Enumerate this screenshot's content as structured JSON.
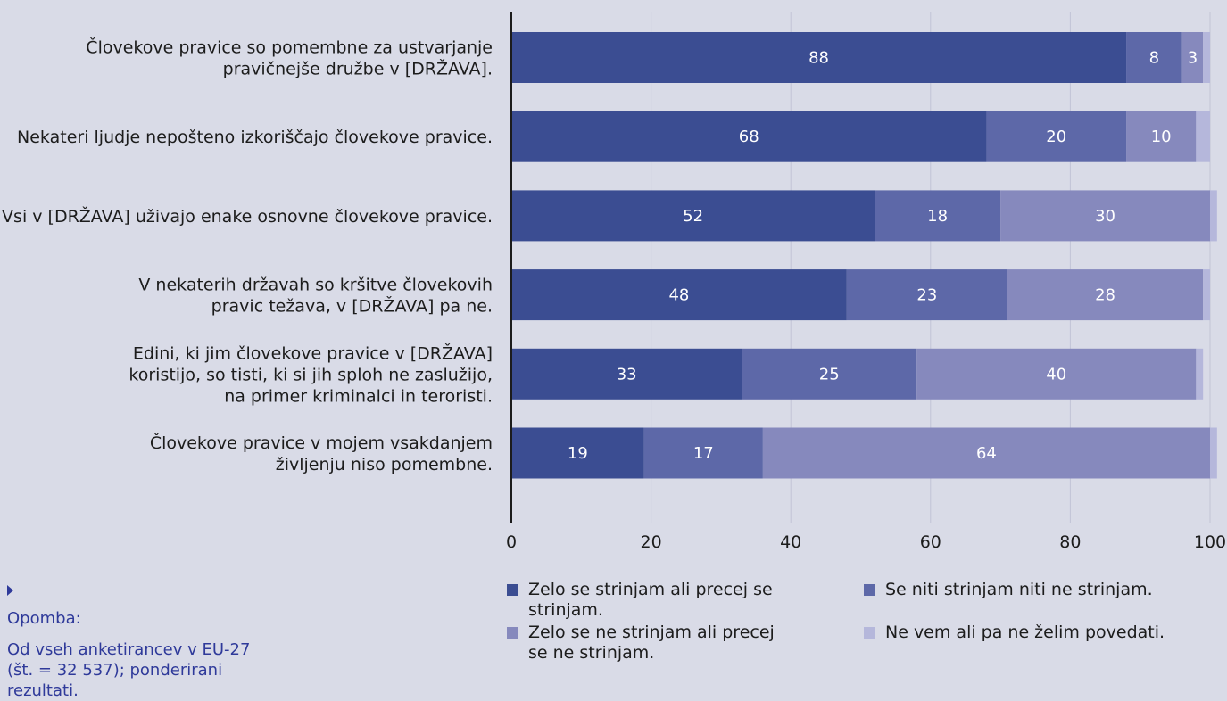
{
  "chart_data": {
    "type": "bar",
    "orientation": "horizontal",
    "stacked": true,
    "categories": [
      [
        "Človekove pravice so pomembne za ustvarjanje",
        "pravičnejše družbe v [DRŽAVA]."
      ],
      [
        "Nekateri ljudje nepošteno izkoriščajo človekove pravice."
      ],
      [
        "Vsi v [DRŽAVA] uživajo enake osnovne človekove pravice."
      ],
      [
        "V nekaterih državah so kršitve človekovih",
        "pravic težava, v [DRŽAVA] pa ne."
      ],
      [
        "Edini, ki jim človekove pravice v [DRŽAVA]",
        "koristijo, so tisti, ki si jih sploh ne zaslužijo,",
        "na primer kriminalci in teroristi."
      ],
      [
        "Človekove pravice v mojem vsakdanjem",
        "življenju niso pomembne."
      ]
    ],
    "series": [
      {
        "name": "Zelo se strinjam ali precej se strinjam.",
        "color": "#3b4d92",
        "values": [
          88,
          68,
          52,
          48,
          33,
          19
        ],
        "labels": [
          "88",
          "68",
          "52",
          "48",
          "33",
          "19"
        ]
      },
      {
        "name": "Se niti strinjam niti ne strinjam.",
        "color": "#5d68a8",
        "values": [
          8,
          20,
          18,
          23,
          25,
          17
        ],
        "labels": [
          "8",
          "20",
          "18",
          "23",
          "25",
          "17"
        ]
      },
      {
        "name": "Zelo se ne strinjam ali precej se ne strinjam.",
        "color": "#8689bd",
        "values": [
          3,
          10,
          30,
          28,
          40,
          64
        ],
        "labels": [
          "3",
          "10",
          "30",
          "28",
          "40",
          "64"
        ]
      },
      {
        "name": "Ne vem ali pa ne želim povedati.",
        "color": "#b5b7db",
        "values": [
          1,
          2,
          1,
          1,
          1,
          1
        ],
        "labels": [
          "",
          "",
          "",
          "",
          "",
          ""
        ]
      }
    ],
    "xlim": [
      0,
      100
    ],
    "xticks": [
      "0",
      "20",
      "40",
      "60",
      "80",
      "100"
    ],
    "grid": true,
    "legend_position": "bottom"
  },
  "legend": {
    "items": [
      {
        "text": "Zelo se strinjam ali precej se strinjam.",
        "color": "#3b4d92"
      },
      {
        "text": "Se niti strinjam niti ne strinjam.",
        "color": "#5d68a8"
      },
      {
        "text": "Zelo se ne strinjam ali precej se ne strinjam.",
        "color": "#8689bd"
      },
      {
        "text": "Ne vem ali pa ne želim povedati.",
        "color": "#b5b7db"
      }
    ]
  },
  "note": {
    "title": "Opomba:",
    "lines": [
      "Od vseh anketirancev v EU-27",
      "(št. = 32 537); ponderirani rezultati."
    ]
  }
}
